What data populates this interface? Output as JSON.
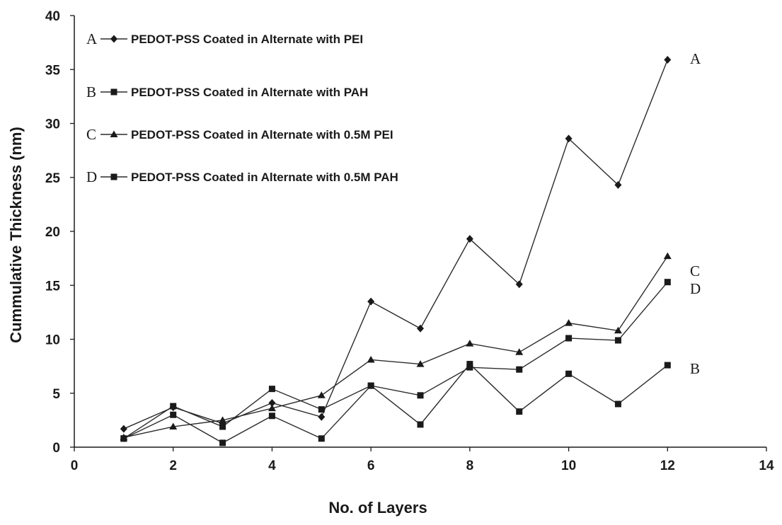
{
  "chart_data": {
    "type": "line",
    "xlabel": "No. of Layers",
    "ylabel": "Cummulative Thickness (nm)",
    "xlim": [
      0,
      14
    ],
    "ylim": [
      0,
      40
    ],
    "xticks": [
      0,
      2,
      4,
      6,
      8,
      10,
      12,
      14
    ],
    "yticks": [
      0,
      5,
      10,
      15,
      20,
      25,
      30,
      35,
      40
    ],
    "grid": false,
    "legend_position": "top-left",
    "x": [
      1,
      2,
      3,
      4,
      5,
      6,
      7,
      8,
      9,
      10,
      11,
      12
    ],
    "series": [
      {
        "letter": "A",
        "name": "PEDOT-PSS Coated in Alternate with PEI",
        "marker": "diamond",
        "values": [
          1.7,
          3.7,
          2.2,
          4.1,
          2.8,
          13.5,
          11.0,
          19.3,
          15.1,
          28.6,
          24.3,
          35.9
        ]
      },
      {
        "letter": "B",
        "name": "PEDOT-PSS Coated in Alternate with PAH",
        "marker": "square",
        "values": [
          0.8,
          3.0,
          0.4,
          2.9,
          0.8,
          5.7,
          2.1,
          7.7,
          3.3,
          6.8,
          4.0,
          7.6
        ]
      },
      {
        "letter": "C",
        "name": "PEDOT-PSS Coated in Alternate with 0.5M PEI",
        "marker": "triangle",
        "values": [
          0.9,
          1.9,
          2.5,
          3.6,
          4.8,
          8.1,
          7.7,
          9.6,
          8.8,
          11.5,
          10.8,
          17.7
        ]
      },
      {
        "letter": "D",
        "name": "PEDOT-PSS Coated in Alternate with 0.5M PAH",
        "marker": "square",
        "values": [
          0.8,
          3.8,
          1.9,
          5.4,
          3.5,
          5.7,
          4.8,
          7.4,
          7.2,
          10.1,
          9.9,
          15.3
        ]
      }
    ],
    "end_labels": [
      "A",
      "C",
      "D",
      "B"
    ],
    "colors": {
      "line": "#2b2b2b",
      "marker": "#1a1a1a",
      "axis": "#1a1a1a",
      "text": "#1a1a1a"
    }
  }
}
